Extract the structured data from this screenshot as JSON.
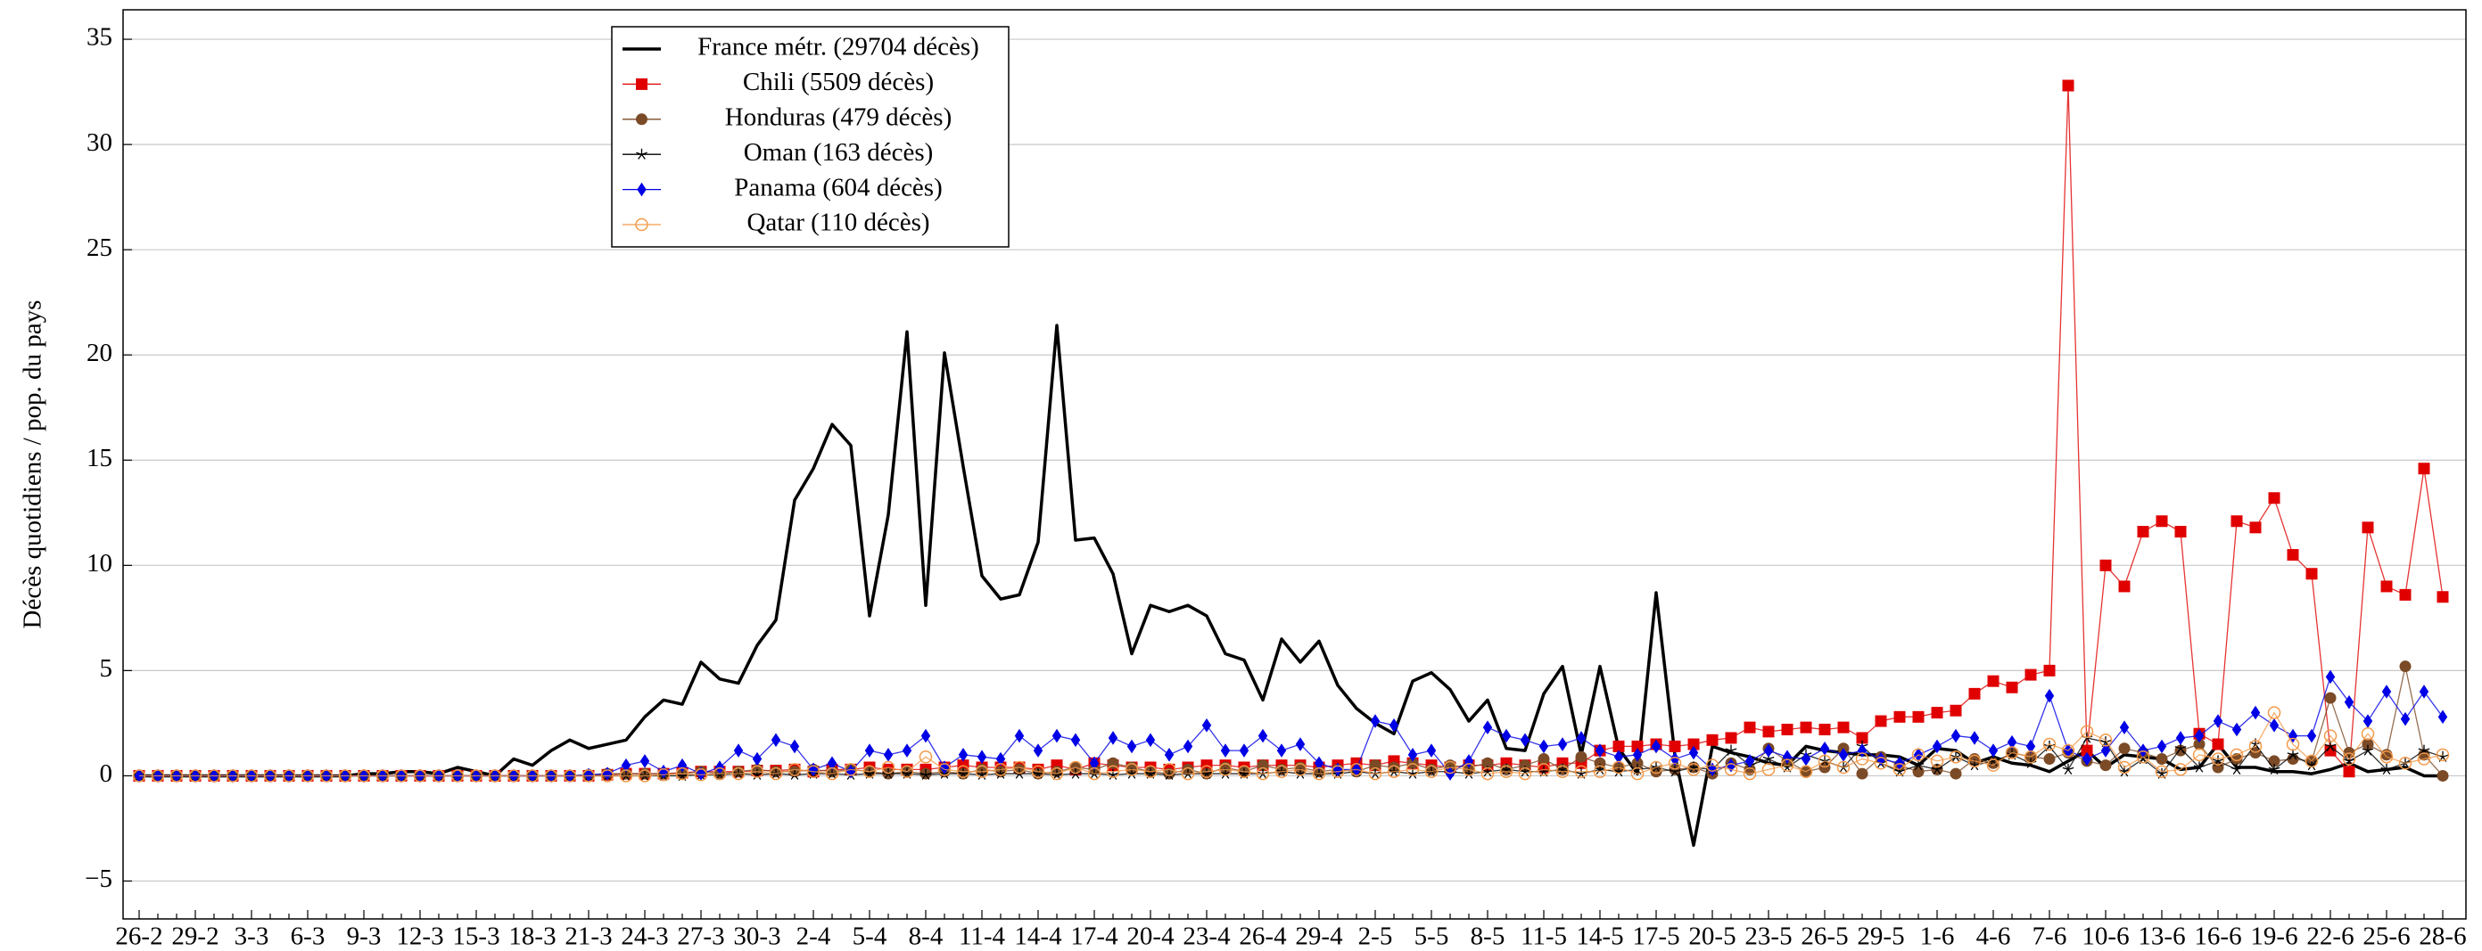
{
  "chart_data": {
    "type": "line",
    "ylabel": "Décès quotidiens / pop. du pays",
    "categories": [
      "26-2",
      null,
      null,
      "29-2",
      null,
      null,
      "3-3",
      null,
      null,
      "6-3",
      null,
      null,
      "9-3",
      null,
      null,
      "12-3",
      null,
      null,
      "15-3",
      null,
      null,
      "18-3",
      null,
      null,
      "21-3",
      null,
      null,
      "24-3",
      null,
      null,
      "27-3",
      null,
      null,
      "30-3",
      null,
      null,
      "2-4",
      null,
      null,
      "5-4",
      null,
      null,
      "8-4",
      null,
      null,
      "11-4",
      null,
      null,
      "14-4",
      null,
      null,
      "17-4",
      null,
      null,
      "20-4",
      null,
      null,
      "23-4",
      null,
      null,
      "26-4",
      null,
      null,
      "29-4",
      null,
      null,
      "2-5",
      null,
      null,
      "5-5",
      null,
      null,
      "8-5",
      null,
      null,
      "11-5",
      null,
      null,
      "14-5",
      null,
      null,
      "17-5",
      null,
      null,
      "20-5",
      null,
      null,
      "23-5",
      null,
      null,
      "26-5",
      null,
      null,
      "29-5",
      null,
      null,
      "1-6",
      null,
      null,
      "4-6",
      null,
      null,
      "7-6",
      null,
      null,
      "10-6",
      null,
      null,
      "13-6",
      null,
      null,
      "16-6",
      null,
      null,
      "19-6",
      null,
      null,
      "22-6",
      null,
      null,
      "25-6",
      null,
      null,
      "28-6"
    ],
    "ylim": [
      -6.8,
      36.4
    ],
    "yticks": [
      {
        "value": -5,
        "label": "−5"
      },
      0,
      5,
      10,
      15,
      20,
      25,
      30,
      35
    ],
    "grid": true,
    "series": [
      {
        "name": "France métr. (29704 décès)",
        "color": "#000000",
        "marker": "none",
        "values": [
          0,
          0,
          0,
          0,
          0,
          0,
          0,
          0,
          0,
          0,
          0,
          0,
          0.1,
          0.1,
          0.2,
          0.2,
          0.1,
          0.4,
          0.2,
          0.0,
          0.8,
          0.5,
          1.2,
          1.7,
          1.3,
          1.5,
          1.7,
          2.8,
          3.6,
          3.4,
          5.4,
          4.6,
          4.4,
          6.2,
          7.4,
          13.1,
          14.6,
          16.7,
          15.7,
          7.6,
          12.4,
          21.1,
          8.1,
          20.1,
          14.7,
          9.5,
          8.4,
          8.6,
          11.1,
          21.4,
          11.2,
          11.3,
          9.6,
          5.8,
          8.1,
          7.8,
          8.1,
          7.6,
          5.8,
          5.5,
          3.6,
          6.5,
          5.4,
          6.4,
          4.3,
          3.2,
          2.5,
          2.0,
          4.5,
          4.9,
          4.1,
          2.6,
          3.6,
          1.3,
          1.2,
          3.9,
          5.2,
          1.0,
          5.2,
          1.3,
          0.1,
          8.7,
          1.0,
          -3.3,
          1.4,
          1.1,
          0.9,
          0.6,
          0.5,
          1.4,
          1.2,
          1.1,
          1.0,
          1.0,
          0.9,
          0.5,
          1.3,
          1.2,
          0.6,
          0.9,
          0.6,
          0.5,
          0.2,
          0.7,
          1.2,
          0.4,
          1.0,
          0.9,
          0.8,
          0.3,
          0.4,
          1.5,
          0.4,
          0.4,
          0.2,
          0.2,
          0.1,
          0.3,
          0.6,
          0.2,
          0.3,
          0.4,
          0.0,
          0.0
        ]
      },
      {
        "name": "Chili (5509 décès)",
        "color": "#e00000",
        "marker": "square",
        "values": [
          0,
          0,
          0,
          0,
          0,
          0,
          0,
          0,
          0,
          0,
          0,
          0,
          0,
          0,
          0,
          0,
          0,
          0,
          0,
          0,
          0,
          0,
          0,
          0,
          0,
          0.05,
          0.1,
          0.1,
          0.1,
          0.15,
          0.2,
          0.2,
          0.2,
          0.25,
          0.25,
          0.3,
          0.2,
          0.3,
          0.3,
          0.4,
          0.3,
          0.3,
          0.3,
          0.4,
          0.5,
          0.4,
          0.4,
          0.4,
          0.3,
          0.5,
          0.3,
          0.6,
          0.5,
          0.4,
          0.4,
          0.3,
          0.4,
          0.5,
          0.5,
          0.4,
          0.5,
          0.5,
          0.5,
          0.4,
          0.5,
          0.6,
          0.5,
          0.7,
          0.6,
          0.5,
          0.4,
          0.5,
          0.5,
          0.6,
          0.5,
          0.4,
          0.6,
          0.6,
          1.2,
          1.4,
          1.4,
          1.5,
          1.4,
          1.5,
          1.7,
          1.8,
          2.3,
          2.1,
          2.2,
          2.3,
          2.2,
          2.3,
          1.8,
          2.6,
          2.8,
          2.8,
          3.0,
          3.1,
          3.9,
          4.5,
          4.2,
          4.8,
          5.0,
          32.8,
          1.2,
          10.0,
          9.0,
          11.6,
          12.1,
          11.6,
          2.0,
          1.5,
          12.1,
          11.8,
          13.2,
          10.5,
          9.6,
          1.2,
          0.2,
          11.8,
          9.0,
          8.6,
          14.6,
          8.5
        ]
      },
      {
        "name": "Honduras (479 décès)",
        "color": "#7b4a26",
        "marker": "circle",
        "values": [
          0,
          0,
          0,
          0,
          0,
          0,
          0,
          0,
          0,
          0,
          0,
          0,
          0,
          0,
          0,
          0,
          0,
          0,
          0,
          0,
          0,
          0,
          0,
          0,
          0.05,
          0.1,
          0.1,
          0.1,
          0.1,
          0.1,
          0.2,
          0.1,
          0.2,
          0.3,
          0.2,
          0.2,
          0.3,
          0.2,
          0.3,
          0.2,
          0.1,
          0.2,
          0.1,
          0.2,
          0.1,
          0.3,
          0.2,
          0.3,
          0.1,
          0.2,
          0.4,
          0.3,
          0.6,
          0.4,
          0.2,
          0.1,
          0.3,
          0.1,
          0.4,
          0.2,
          0.5,
          0.3,
          0.4,
          0.2,
          0.3,
          0.2,
          0.5,
          0.4,
          0.6,
          0.3,
          0.5,
          0.4,
          0.6,
          0.3,
          0.5,
          0.8,
          0.3,
          0.9,
          0.6,
          0.4,
          0.6,
          0.2,
          0.3,
          0.4,
          0.1,
          0.6,
          0.3,
          1.3,
          0.7,
          0.2,
          0.4,
          1.3,
          0.1,
          0.9,
          0.5,
          0.2,
          0.3,
          0.1,
          0.8,
          0.6,
          1.1,
          0.9,
          0.8,
          1.1,
          0.7,
          0.5,
          1.3,
          1.1,
          0.8,
          1.2,
          1.5,
          0.4,
          0.8,
          1.1,
          0.7,
          0.8,
          0.7,
          3.7,
          1.1,
          1.5,
          1.0,
          5.2,
          1.0,
          0.0
        ]
      },
      {
        "name": "Oman (163 décès)",
        "color": "#000000",
        "marker": "star",
        "values": [
          0,
          0,
          0,
          0,
          0,
          0,
          0,
          0,
          0,
          0,
          0,
          0,
          0,
          0,
          0,
          0,
          0,
          0,
          0,
          0,
          0,
          0,
          0,
          0,
          0,
          0,
          0,
          0,
          0,
          0,
          0.05,
          0.05,
          0.1,
          0.05,
          0.1,
          0.05,
          0.1,
          0.1,
          0.05,
          0.1,
          0.1,
          0.1,
          0.05,
          0.1,
          0.1,
          0.05,
          0.1,
          0.1,
          0.1,
          0.05,
          0.1,
          0.1,
          0.05,
          0.1,
          0.1,
          0.05,
          0.1,
          0.1,
          0.1,
          0.1,
          0.1,
          0.2,
          0.1,
          0.1,
          0.1,
          0.2,
          0.1,
          0.2,
          0.1,
          0.2,
          0.2,
          0.1,
          0.2,
          0.3,
          0.2,
          0.2,
          0.3,
          0.1,
          0.3,
          0.2,
          0.3,
          0.4,
          0.2,
          0.4,
          0.3,
          1.2,
          0.5,
          0.8,
          0.4,
          1.0,
          0.7,
          0.4,
          1.4,
          0.6,
          0.2,
          0.5,
          0.3,
          0.9,
          0.5,
          0.7,
          1.0,
          0.6,
          1.4,
          0.3,
          1.8,
          1.6,
          0.2,
          0.8,
          0.1,
          1.3,
          0.4,
          0.7,
          0.3,
          1.5,
          0.3,
          1.0,
          0.5,
          1.4,
          0.7,
          1.2,
          0.3,
          0.6,
          1.2,
          0.9
        ]
      },
      {
        "name": "Panama (604 décès)",
        "color": "#0000e6",
        "marker": "diamond",
        "values": [
          0,
          0,
          0,
          0,
          0,
          0,
          0,
          0,
          0,
          0,
          0,
          0,
          0,
          0,
          0,
          0,
          0,
          0,
          0,
          0,
          0,
          0,
          0,
          0,
          0.05,
          0.1,
          0.5,
          0.7,
          0.2,
          0.5,
          0.1,
          0.4,
          1.2,
          0.8,
          1.7,
          1.4,
          0.3,
          0.6,
          0.2,
          1.2,
          1.0,
          1.2,
          1.9,
          0.4,
          1.0,
          0.9,
          0.8,
          1.9,
          1.2,
          1.9,
          1.7,
          0.6,
          1.8,
          1.4,
          1.7,
          1.0,
          1.4,
          2.4,
          1.2,
          1.2,
          1.9,
          1.2,
          1.5,
          0.6,
          0.3,
          0.3,
          2.6,
          2.4,
          1.0,
          1.2,
          0.1,
          0.7,
          2.3,
          1.9,
          1.7,
          1.4,
          1.5,
          1.8,
          1.2,
          0.9,
          1.0,
          1.4,
          0.8,
          1.1,
          0.3,
          0.5,
          0.7,
          1.2,
          0.9,
          0.8,
          1.3,
          1.0,
          1.2,
          0.8,
          0.6,
          1.0,
          1.4,
          1.9,
          1.8,
          1.2,
          1.6,
          1.4,
          3.8,
          1.2,
          0.8,
          1.2,
          2.3,
          1.2,
          1.4,
          1.8,
          1.9,
          2.6,
          2.2,
          3.0,
          2.4,
          1.9,
          1.9,
          4.7,
          3.5,
          2.6,
          4.0,
          2.7,
          4.0,
          2.8
        ]
      },
      {
        "name": "Qatar (110 décès)",
        "color": "#f39a4a",
        "marker": "open-circle",
        "values": [
          0,
          0,
          0,
          0,
          0,
          0,
          0,
          0,
          0,
          0,
          0,
          0,
          0,
          0,
          0,
          0,
          0,
          0,
          0,
          0,
          0,
          0,
          0,
          0,
          0,
          0,
          0,
          0,
          0.05,
          0.1,
          0.05,
          0.1,
          0.1,
          0.2,
          0.1,
          0.3,
          0.2,
          0.1,
          0.3,
          0.2,
          0.4,
          0.2,
          0.9,
          0.3,
          0.2,
          0.2,
          0.3,
          0.4,
          0.2,
          0.1,
          0.4,
          0.1,
          0.2,
          0.3,
          0.2,
          0.3,
          0.1,
          0.2,
          0.3,
          0.2,
          0.1,
          0.2,
          0.3,
          0.1,
          0.2,
          0.3,
          0.1,
          0.2,
          0.3,
          0.2,
          0.4,
          0.3,
          0.1,
          0.2,
          0.1,
          0.3,
          0.2,
          0.2,
          0.2,
          0.4,
          0.1,
          0.4,
          0.6,
          0.3,
          0.5,
          0.3,
          0.1,
          0.3,
          0.5,
          0.2,
          0.7,
          0.4,
          0.8,
          0.6,
          0.3,
          1.0,
          0.7,
          0.9,
          0.7,
          0.5,
          1.1,
          0.9,
          1.5,
          1.2,
          2.1,
          1.7,
          0.4,
          0.9,
          0.2,
          0.3,
          1.0,
          0.8,
          1.0,
          1.4,
          3.0,
          1.5,
          0.7,
          1.9,
          0.8,
          2.0,
          0.9,
          0.6,
          0.8,
          1.0
        ]
      }
    ]
  }
}
